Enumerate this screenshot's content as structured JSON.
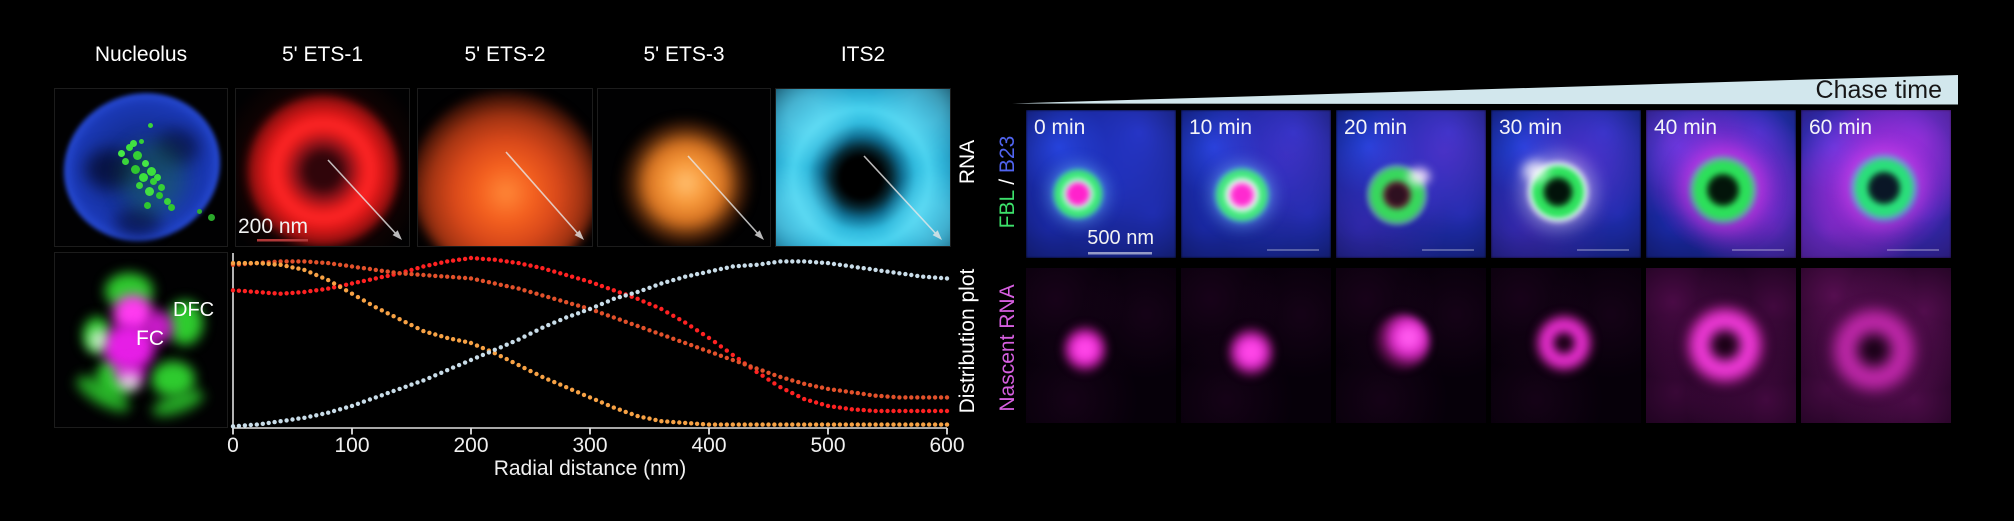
{
  "left": {
    "panel_labels": [
      "Nucleolus",
      "5' ETS-1",
      "5' ETS-2",
      "5' ETS-3",
      "ITS2"
    ],
    "rna_label": "RNA",
    "plot_label": "Distribution plot",
    "scale_bar": "200 nm",
    "dfc_label": "DFC",
    "fc_label": "FC"
  },
  "chart_data": {
    "type": "scatter",
    "style": "dotted-curves",
    "title": "",
    "xlabel": "Radial distance (nm)",
    "ylabel": "Distribution plot",
    "xlim": [
      0,
      600
    ],
    "ylim": [
      0,
      1
    ],
    "x_ticks": [
      0,
      100,
      200,
      300,
      400,
      500,
      600
    ],
    "grid": false,
    "legend": "none (curve colors match RNA probe panels above)",
    "x": [
      0,
      20,
      40,
      60,
      80,
      100,
      120,
      140,
      160,
      180,
      200,
      220,
      240,
      260,
      280,
      300,
      320,
      340,
      360,
      380,
      400,
      420,
      440,
      460,
      480,
      500,
      520,
      540,
      560,
      580,
      600
    ],
    "series": [
      {
        "name": "5' ETS-1",
        "color": "#ff2222",
        "y": [
          0.81,
          0.8,
          0.79,
          0.8,
          0.82,
          0.85,
          0.88,
          0.91,
          0.95,
          0.98,
          1.0,
          0.99,
          0.97,
          0.94,
          0.9,
          0.86,
          0.81,
          0.76,
          0.7,
          0.62,
          0.53,
          0.43,
          0.33,
          0.24,
          0.17,
          0.13,
          0.11,
          0.1,
          0.1,
          0.1,
          0.1
        ]
      },
      {
        "name": "5' ETS-2",
        "color": "#e2512b",
        "y": [
          0.96,
          0.97,
          0.98,
          0.98,
          0.97,
          0.95,
          0.93,
          0.91,
          0.9,
          0.89,
          0.88,
          0.85,
          0.82,
          0.78,
          0.74,
          0.7,
          0.65,
          0.6,
          0.55,
          0.5,
          0.45,
          0.4,
          0.35,
          0.3,
          0.26,
          0.23,
          0.21,
          0.19,
          0.18,
          0.18,
          0.18
        ]
      },
      {
        "name": "5' ETS-3",
        "color": "#f7a245",
        "y": [
          0.97,
          0.97,
          0.96,
          0.93,
          0.87,
          0.79,
          0.71,
          0.64,
          0.57,
          0.53,
          0.5,
          0.44,
          0.37,
          0.3,
          0.24,
          0.18,
          0.12,
          0.07,
          0.04,
          0.03,
          0.02,
          0.02,
          0.02,
          0.02,
          0.02,
          0.02,
          0.02,
          0.02,
          0.02,
          0.02,
          0.02
        ]
      },
      {
        "name": "ITS2",
        "color": "#c9dde9",
        "y": [
          0.01,
          0.02,
          0.04,
          0.06,
          0.09,
          0.13,
          0.18,
          0.23,
          0.28,
          0.34,
          0.4,
          0.46,
          0.52,
          0.59,
          0.65,
          0.7,
          0.76,
          0.8,
          0.85,
          0.89,
          0.92,
          0.95,
          0.96,
          0.98,
          0.98,
          0.97,
          0.95,
          0.93,
          0.91,
          0.89,
          0.88
        ]
      }
    ]
  },
  "right": {
    "chase_label": "Chase time",
    "time_labels": [
      "0 min",
      "10 min",
      "20 min",
      "30 min",
      "40 min",
      "60 min"
    ],
    "row1_label": {
      "fbl": "FBL",
      "sep": " / ",
      "b23": "B23"
    },
    "row2_label": "Nascent RNA",
    "scale_bar": "500 nm",
    "colors": {
      "fbl_green": "#3ce06a",
      "b23_blue": "#5064f0",
      "nascent_magenta": "#d65fe0",
      "wedge": "#d2e7ed"
    }
  }
}
